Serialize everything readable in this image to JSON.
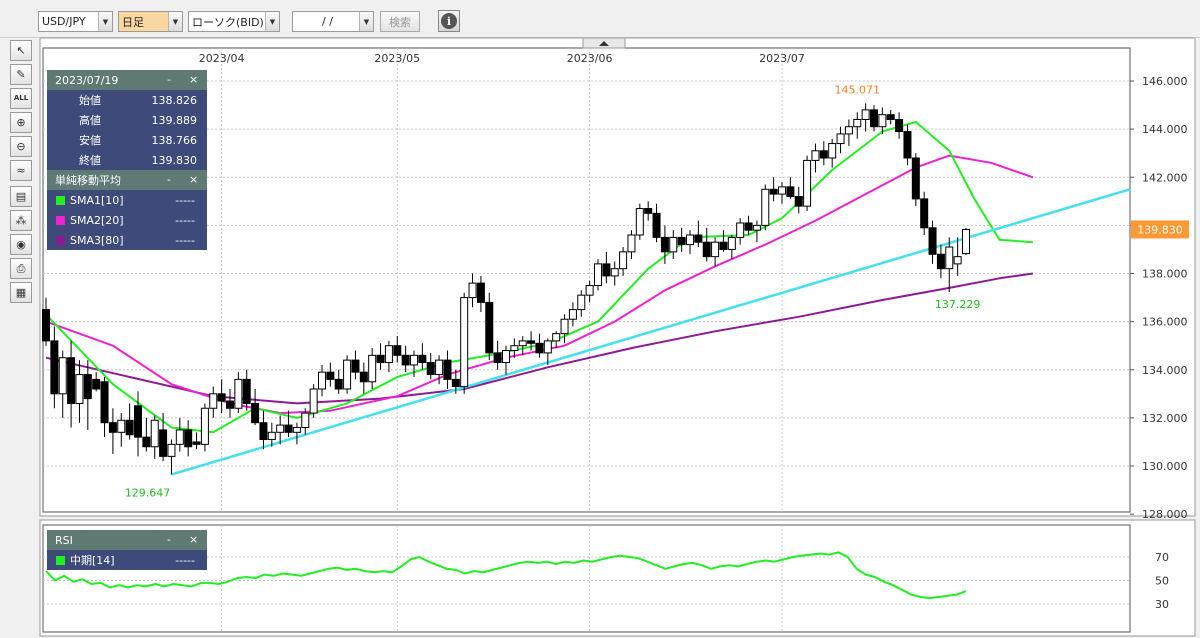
{
  "toolbar": {
    "pair": "USD/JPY",
    "timeframe": "日足",
    "chart_type": "ローソク(BID)",
    "date_input": "/ /",
    "search_label": "検索",
    "info_icon": "info-icon",
    "timeframe_bg": "#f8d8a0"
  },
  "sidebar_tools": [
    {
      "name": "pointer-tool-button",
      "icon": "cursor-icon",
      "glyph": "↖"
    },
    {
      "name": "draw-line-button",
      "icon": "pencil-icon",
      "glyph": "✎"
    },
    {
      "name": "delete-all-button",
      "icon": "eraser-icon",
      "glyph": "ALL"
    },
    {
      "name": "zoom-in-button",
      "icon": "zoom-in-icon",
      "glyph": "⊕"
    },
    {
      "name": "zoom-out-button",
      "icon": "zoom-out-icon",
      "glyph": "⊖"
    },
    {
      "name": "indicator-button",
      "icon": "indicator-icon",
      "glyph": "≈"
    },
    {
      "name": "numeric-display-button",
      "icon": "numbers-icon",
      "glyph": "▤"
    },
    {
      "name": "settings-button",
      "icon": "palette-icon",
      "glyph": "⁂"
    },
    {
      "name": "view-button",
      "icon": "eye-icon",
      "glyph": "◉"
    },
    {
      "name": "print-button",
      "icon": "printer-icon",
      "glyph": "⎙"
    },
    {
      "name": "table-button",
      "icon": "table-icon",
      "glyph": "▦"
    }
  ],
  "ohlc_panel": {
    "date": "2023/07/19",
    "minimize": "-",
    "close": "×",
    "rows": [
      {
        "label": "始値",
        "value": "138.826"
      },
      {
        "label": "高値",
        "value": "139.889"
      },
      {
        "label": "安値",
        "value": "138.766"
      },
      {
        "label": "終値",
        "value": "139.830"
      }
    ]
  },
  "sma_panel": {
    "title": "単純移動平均",
    "minimize": "-",
    "close": "×",
    "rows": [
      {
        "label": "SMA1[10]",
        "value": "-----",
        "color": "#22ee22"
      },
      {
        "label": "SMA2[20]",
        "value": "-----",
        "color": "#ee22cc"
      },
      {
        "label": "SMA3[80]",
        "value": "-----",
        "color": "#8e1a96"
      }
    ]
  },
  "rsi_panel": {
    "title": "RSI",
    "minimize": "-",
    "close": "×",
    "rows": [
      {
        "label": "中期[14]",
        "value": "-----",
        "color": "#22ee22"
      }
    ]
  },
  "chart_data": [
    {
      "type": "candlestick",
      "x_ticks": [
        "2023/04",
        "2023/05",
        "2023/06",
        "2023/07"
      ],
      "y_ticks": [
        "146.000",
        "144.000",
        "142.000",
        "140.000",
        "138.000",
        "136.000",
        "134.000",
        "132.000",
        "130.000",
        "128.000"
      ],
      "ylim": [
        128,
        146.5
      ],
      "grid": true,
      "current_price": "139.830",
      "annotations": [
        {
          "text": "145.071",
          "value": 145.071,
          "color": "#ff7f27"
        },
        {
          "text": "137.229",
          "value": 137.229,
          "color": "#22bb22"
        },
        {
          "text": "129.647",
          "value": 129.647,
          "color": "#22bb22"
        }
      ],
      "candles": [
        [
          136.5,
          137.0,
          135.0,
          135.2
        ],
        [
          135.2,
          135.8,
          132.4,
          133.0
        ],
        [
          133.0,
          134.8,
          132.0,
          134.5
        ],
        [
          134.5,
          135.2,
          131.6,
          132.6
        ],
        [
          132.6,
          134.4,
          131.8,
          133.8
        ],
        [
          133.8,
          134.4,
          131.5,
          132.8
        ],
        [
          133.6,
          133.9,
          133.1,
          133.2
        ],
        [
          133.5,
          133.7,
          131.2,
          131.8
        ],
        [
          131.8,
          132.4,
          130.5,
          131.4
        ],
        [
          131.4,
          132.2,
          130.8,
          131.9
        ],
        [
          131.9,
          132.6,
          131.1,
          131.3
        ],
        [
          132.5,
          133.1,
          130.4,
          131.2
        ],
        [
          131.2,
          132.0,
          130.6,
          130.8
        ],
        [
          130.8,
          132.1,
          130.3,
          131.9
        ],
        [
          131.5,
          132.2,
          130.2,
          130.4
        ],
        [
          130.4,
          131.1,
          129.647,
          130.9
        ],
        [
          130.9,
          132.0,
          130.6,
          131.5
        ],
        [
          131.5,
          131.9,
          130.4,
          130.8
        ],
        [
          131.0,
          131.4,
          130.7,
          130.9
        ],
        [
          130.9,
          132.6,
          130.6,
          132.4
        ],
        [
          132.4,
          133.3,
          132.0,
          133.0
        ],
        [
          133.0,
          133.6,
          132.2,
          132.7
        ],
        [
          132.7,
          133.2,
          132.0,
          132.4
        ],
        [
          132.4,
          133.9,
          132.2,
          133.6
        ],
        [
          133.6,
          134.0,
          132.3,
          132.6
        ],
        [
          132.6,
          133.2,
          131.7,
          131.8
        ],
        [
          131.8,
          132.3,
          130.7,
          131.1
        ],
        [
          131.1,
          131.8,
          130.8,
          131.4
        ],
        [
          131.4,
          132.1,
          130.9,
          131.7
        ],
        [
          131.7,
          132.3,
          131.2,
          131.4
        ],
        [
          131.4,
          131.8,
          130.9,
          131.6
        ],
        [
          131.6,
          132.4,
          131.3,
          132.2
        ],
        [
          132.2,
          133.4,
          132.0,
          133.2
        ],
        [
          133.2,
          134.2,
          132.9,
          133.9
        ],
        [
          133.9,
          134.3,
          133.3,
          133.6
        ],
        [
          133.6,
          134.0,
          133.0,
          133.2
        ],
        [
          133.2,
          134.6,
          133.0,
          134.4
        ],
        [
          134.4,
          134.8,
          133.6,
          133.9
        ],
        [
          133.9,
          134.3,
          133.0,
          133.5
        ],
        [
          133.5,
          134.9,
          133.2,
          134.6
        ],
        [
          134.6,
          135.1,
          134.0,
          134.3
        ],
        [
          134.3,
          135.2,
          133.9,
          135.0
        ],
        [
          135.0,
          135.4,
          134.3,
          134.6
        ],
        [
          134.6,
          135.0,
          133.9,
          134.2
        ],
        [
          134.2,
          134.8,
          133.7,
          134.6
        ],
        [
          134.6,
          135.1,
          134.0,
          134.3
        ],
        [
          134.3,
          134.7,
          133.6,
          133.8
        ],
        [
          133.8,
          134.6,
          133.4,
          134.4
        ],
        [
          134.4,
          134.8,
          133.2,
          133.6
        ],
        [
          133.6,
          134.0,
          133.0,
          133.3
        ],
        [
          133.3,
          137.2,
          133.0,
          137.0
        ],
        [
          137.0,
          138.0,
          136.6,
          137.6
        ],
        [
          137.6,
          137.9,
          136.4,
          136.8
        ],
        [
          136.8,
          137.2,
          134.4,
          134.7
        ],
        [
          134.7,
          135.2,
          134.0,
          134.3
        ],
        [
          134.3,
          135.0,
          133.8,
          134.8
        ],
        [
          134.8,
          135.3,
          134.5,
          135.0
        ],
        [
          135.0,
          135.4,
          134.6,
          135.2
        ],
        [
          135.2,
          135.6,
          134.8,
          135.1
        ],
        [
          135.1,
          135.5,
          134.5,
          134.7
        ],
        [
          134.7,
          135.3,
          134.2,
          135.2
        ],
        [
          135.2,
          135.6,
          134.9,
          135.5
        ],
        [
          135.5,
          136.3,
          135.1,
          136.1
        ],
        [
          136.1,
          136.8,
          135.8,
          136.5
        ],
        [
          136.5,
          137.3,
          136.2,
          137.1
        ],
        [
          137.1,
          137.7,
          136.8,
          137.5
        ],
        [
          137.5,
          138.6,
          137.3,
          138.4
        ],
        [
          138.4,
          138.9,
          137.6,
          137.9
        ],
        [
          137.9,
          138.5,
          137.5,
          138.2
        ],
        [
          138.2,
          139.1,
          137.9,
          138.9
        ],
        [
          138.9,
          139.8,
          138.6,
          139.6
        ],
        [
          139.6,
          140.9,
          139.4,
          140.7
        ],
        [
          140.7,
          141.0,
          140.2,
          140.5
        ],
        [
          140.5,
          140.9,
          139.3,
          139.5
        ],
        [
          139.5,
          140.0,
          138.4,
          138.9
        ],
        [
          138.9,
          139.8,
          138.6,
          139.5
        ],
        [
          139.5,
          139.9,
          138.9,
          139.2
        ],
        [
          139.2,
          139.8,
          138.8,
          139.6
        ],
        [
          139.6,
          140.2,
          139.1,
          139.3
        ],
        [
          139.3,
          139.9,
          138.5,
          138.7
        ],
        [
          138.7,
          139.5,
          138.3,
          139.3
        ],
        [
          139.3,
          139.8,
          138.9,
          139.0
        ],
        [
          139.0,
          139.6,
          138.6,
          139.5
        ],
        [
          139.5,
          140.3,
          139.2,
          140.1
        ],
        [
          140.1,
          140.4,
          139.6,
          139.8
        ],
        [
          139.8,
          140.2,
          139.3,
          140.0
        ],
        [
          140.0,
          141.7,
          139.8,
          141.5
        ],
        [
          141.5,
          142.0,
          141.0,
          141.3
        ],
        [
          141.3,
          141.8,
          140.9,
          141.6
        ],
        [
          141.6,
          142.0,
          141.1,
          141.2
        ],
        [
          141.2,
          141.6,
          140.5,
          140.8
        ],
        [
          140.8,
          142.9,
          140.6,
          142.7
        ],
        [
          142.7,
          143.4,
          142.2,
          143.1
        ],
        [
          143.1,
          143.5,
          142.5,
          142.8
        ],
        [
          142.8,
          143.6,
          142.4,
          143.4
        ],
        [
          143.4,
          144.1,
          143.0,
          143.8
        ],
        [
          143.8,
          144.4,
          143.3,
          144.1
        ],
        [
          144.1,
          144.7,
          143.6,
          144.4
        ],
        [
          144.4,
          145.071,
          143.9,
          144.8
        ],
        [
          144.8,
          145.0,
          143.9,
          144.1
        ],
        [
          144.1,
          144.9,
          143.8,
          144.6
        ],
        [
          144.6,
          144.8,
          144.2,
          144.4
        ],
        [
          144.4,
          144.7,
          143.6,
          143.9
        ],
        [
          143.9,
          144.2,
          142.5,
          142.8
        ],
        [
          142.8,
          143.0,
          140.8,
          141.1
        ],
        [
          141.1,
          141.4,
          139.6,
          139.9
        ],
        [
          139.9,
          140.2,
          138.4,
          138.8
        ],
        [
          138.8,
          139.2,
          137.8,
          138.2
        ],
        [
          138.2,
          139.5,
          137.229,
          139.1
        ],
        [
          138.4,
          139.5,
          137.9,
          138.7
        ],
        [
          138.826,
          139.889,
          138.766,
          139.83
        ]
      ],
      "sma1": [
        [
          0,
          136.3
        ],
        [
          8,
          133.4
        ],
        [
          15,
          131.6
        ],
        [
          20,
          131.4
        ],
        [
          25,
          132.4
        ],
        [
          30,
          132.0
        ],
        [
          36,
          132.6
        ],
        [
          42,
          133.7
        ],
        [
          48,
          134.3
        ],
        [
          53,
          134.6
        ],
        [
          60,
          135.1
        ],
        [
          66,
          136.0
        ],
        [
          72,
          138.2
        ],
        [
          77,
          139.5
        ],
        [
          84,
          139.6
        ],
        [
          88,
          140.3
        ],
        [
          94,
          142.3
        ],
        [
          100,
          143.9
        ],
        [
          104,
          144.3
        ],
        [
          108,
          143.1
        ],
        [
          111,
          141.1
        ],
        [
          114,
          139.4
        ],
        [
          118,
          139.3
        ]
      ],
      "sma2": [
        [
          0,
          136.0
        ],
        [
          8,
          135.0
        ],
        [
          15,
          133.4
        ],
        [
          22,
          132.6
        ],
        [
          28,
          132.2
        ],
        [
          34,
          132.3
        ],
        [
          42,
          132.9
        ],
        [
          48,
          133.8
        ],
        [
          55,
          134.5
        ],
        [
          62,
          135.0
        ],
        [
          68,
          136.0
        ],
        [
          74,
          137.3
        ],
        [
          80,
          138.3
        ],
        [
          86,
          139.2
        ],
        [
          92,
          140.2
        ],
        [
          98,
          141.3
        ],
        [
          104,
          142.4
        ],
        [
          108,
          142.9
        ],
        [
          113,
          142.6
        ],
        [
          118,
          142.0
        ]
      ],
      "sma3": [
        [
          0,
          134.5
        ],
        [
          10,
          133.7
        ],
        [
          20,
          132.9
        ],
        [
          30,
          132.6
        ],
        [
          40,
          132.8
        ],
        [
          50,
          133.2
        ],
        [
          60,
          134.1
        ],
        [
          70,
          134.9
        ],
        [
          80,
          135.6
        ],
        [
          90,
          136.2
        ],
        [
          100,
          136.9
        ],
        [
          108,
          137.4
        ],
        [
          114,
          137.8
        ],
        [
          118,
          138.0
        ]
      ],
      "trendline": {
        "from": [
          15,
          129.647
        ],
        "to_value_at_chart_right": 141.5,
        "color": "#44e0f0"
      }
    },
    {
      "type": "line",
      "title": "RSI",
      "y_ticks": [
        "70",
        "50",
        "30"
      ],
      "ylim": [
        20,
        82
      ],
      "grid": true,
      "series": [
        {
          "name": "中期[14]",
          "values": [
            58,
            50,
            54,
            49,
            51,
            47,
            48,
            44,
            46,
            44,
            46,
            45,
            47,
            45,
            47,
            46,
            45,
            48,
            48,
            47,
            49,
            52,
            53,
            52,
            55,
            54,
            56,
            55,
            54,
            56,
            58,
            60,
            61,
            59,
            60,
            58,
            57,
            58,
            57,
            62,
            68,
            70,
            66,
            63,
            60,
            59,
            56,
            58,
            57,
            59,
            61,
            63,
            65,
            66,
            65,
            66,
            64,
            66,
            65,
            67,
            66,
            68,
            70,
            71,
            70,
            69,
            66,
            63,
            60,
            62,
            64,
            65,
            63,
            60,
            62,
            63,
            62,
            64,
            66,
            67,
            66,
            68,
            70,
            71,
            72,
            73,
            72,
            74,
            70,
            60,
            55,
            53,
            49,
            46,
            42,
            38,
            36,
            35,
            36,
            37,
            38,
            41
          ]
        }
      ]
    }
  ]
}
